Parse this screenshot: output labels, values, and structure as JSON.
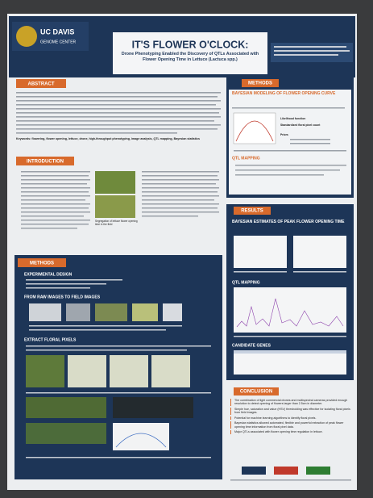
{
  "header": {
    "logo_line1": "UC DAVIS",
    "logo_line2": "GENOME CENTER",
    "title": "IT'S FLOWER O'CLOCK:",
    "subtitle": "Drone Phenotyping Enabled the Discovery of QTLs Associated with Flower Opening Time in Lettuce (Lactuca spp.)"
  },
  "abstract": {
    "heading": "ABSTRACT",
    "keywords": "Keywords: flowering, flower opening, lettuce, drone, high-throughput phenotyping, image analysis, QTL mapping, Bayesian statistics"
  },
  "introduction": {
    "heading": "INTRODUCTION",
    "caption": "Segregation of lettuce flower opening time in the field"
  },
  "methods_left": {
    "heading": "METHODS",
    "sub1": "EXPERIMENTAL DESIGN",
    "sub2": "FROM RAW IMAGES TO FIELD IMAGES",
    "sub3": "EXTRACT FLORAL PIXELS"
  },
  "methods_right": {
    "heading": "METHODS",
    "sub1": "BAYESIAN MODELING OF FLOWER OPENING CURVE",
    "sub2": "QTL MAPPING",
    "likelihood": "Likelihood function",
    "floral_pixel": "Standardized floral pixel count",
    "priors": "Priors"
  },
  "results": {
    "heading": "RESULTS",
    "sub1": "BAYESIAN ESTIMATES OF PEAK FLOWER OPENING TIME",
    "sub2": "QTL MAPPING",
    "sub3": "CANDIDATE GENES"
  },
  "conclusion": {
    "heading": "CONCLUSION",
    "bullets": [
      "The combination of light commercial drones and multispectral cameras provided enough resolution to detect opening of flowers larger than 2.5cm in diameter.",
      "Simple hue, saturation and value (HSV) thresholding was effective for isolating floral pixels from field images.",
      "Potential for machine learning algorithms to identify floral pixels.",
      "Bayesian statistics allowed automated, flexible and powerful extraction of peak flower opening time information from floral pixel data.",
      "Major QTLs associated with flower opening time regulation in lettuce."
    ]
  }
}
